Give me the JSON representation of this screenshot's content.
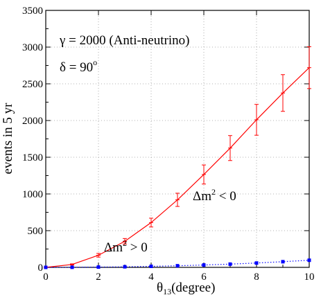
{
  "chart_data": {
    "type": "line",
    "title": "",
    "xlabel": "θ13(degree)",
    "xlabel_main": "θ",
    "xlabel_sub": "13",
    "xlabel_rest": "(degree)",
    "ylabel": "events in 5 yr",
    "xlim": [
      0,
      10
    ],
    "ylim": [
      0,
      3500
    ],
    "x_ticks": [
      "0",
      "2",
      "4",
      "6",
      "8",
      "10"
    ],
    "y_ticks": [
      "0",
      "500",
      "1000",
      "1500",
      "2000",
      "2500",
      "3000",
      "3500"
    ],
    "grid": true,
    "annotations": {
      "line1": "γ = 2000 (Anti-neutrino)",
      "line2_main": "δ = 90",
      "line2_sup": "o",
      "neg_main": "Δm",
      "neg_sup": "2",
      "neg_rest": " < 0",
      "pos_main": "Δm",
      "pos_sup": "2",
      "pos_rest": " > 0"
    },
    "series": [
      {
        "color": "#ff0000",
        "line_style": "solid",
        "marker": "cross",
        "x": [
          0,
          1,
          2,
          3,
          4,
          5,
          6,
          7,
          8,
          9,
          10
        ],
        "y": [
          0,
          40,
          165,
          355,
          610,
          920,
          1265,
          1625,
          2010,
          2375,
          2720
        ],
        "err": [
          0,
          8,
          25,
          38,
          60,
          90,
          130,
          170,
          210,
          250,
          285
        ]
      },
      {
        "color": "#0000ff",
        "line_style": "dotted",
        "marker": "square",
        "x": [
          0,
          1,
          2,
          3,
          4,
          5,
          6,
          7,
          8,
          9,
          10
        ],
        "y": [
          0,
          1,
          4,
          8,
          14,
          22,
          32,
          44,
          59,
          77,
          97
        ],
        "err": [
          0,
          0,
          0,
          0,
          0,
          0,
          0,
          0,
          0,
          0,
          0
        ]
      }
    ]
  }
}
